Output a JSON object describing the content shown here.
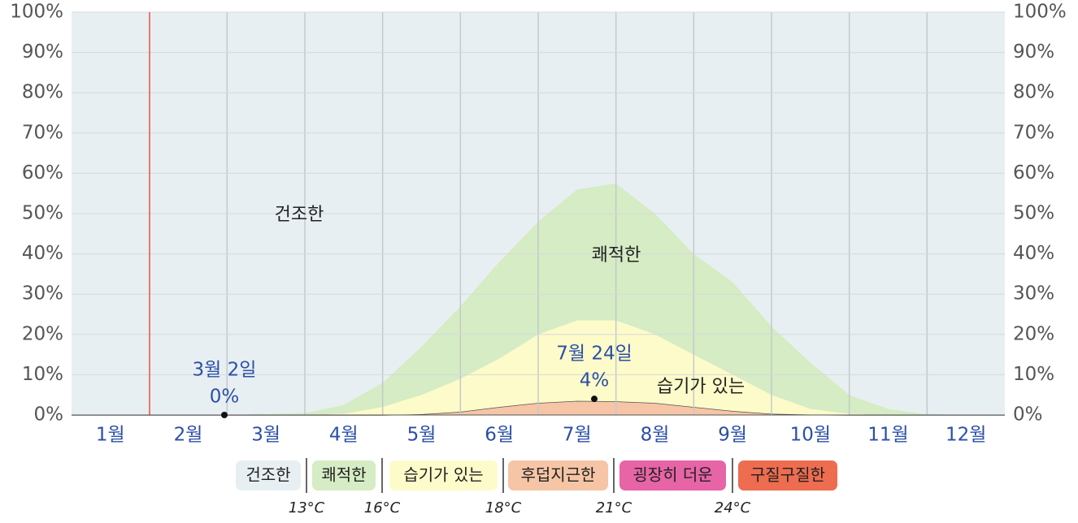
{
  "chart_data": {
    "type": "stacked-area",
    "categories": [
      null,
      "1월",
      null,
      "2월",
      null,
      "3월",
      null,
      "4월",
      null,
      "5월",
      null,
      "6월",
      null,
      "7월",
      null,
      "8월",
      null,
      "9월",
      null,
      "10월",
      null,
      "11월",
      null,
      "12월",
      null
    ],
    "series": [
      {
        "name": "후덥지근한",
        "color": "#f6c5a6",
        "values": [
          0,
          0,
          0,
          0,
          0,
          0,
          0,
          0,
          0,
          0.2,
          0.8,
          2,
          3,
          3.5,
          3.4,
          3,
          2,
          1,
          0.3,
          0.1,
          0,
          0,
          0,
          0,
          0
        ]
      },
      {
        "name": "습기가 있는",
        "color": "#fdfbc9",
        "values": [
          0,
          0,
          0,
          0,
          0,
          0,
          0,
          0.3,
          2,
          4.8,
          8.2,
          12,
          17,
          20,
          20.1,
          17,
          13,
          9,
          4.7,
          1.4,
          0.3,
          0,
          0,
          0,
          0
        ]
      },
      {
        "name": "쾌적한",
        "color": "#d5ecc4",
        "values": [
          0,
          0,
          0,
          0,
          0,
          0.2,
          0.5,
          2.2,
          6,
          12,
          18,
          24,
          28,
          32.5,
          34,
          30,
          25,
          23,
          17,
          11.5,
          4.7,
          1.5,
          0.2,
          0,
          0
        ]
      },
      {
        "name": "건조한",
        "color": "#e8eff2",
        "values": [
          100,
          100,
          100,
          100,
          100,
          99.8,
          99.5,
          97.5,
          92,
          83,
          73,
          62,
          52,
          44,
          42.5,
          50,
          60,
          67,
          78,
          87,
          95,
          98.5,
          99.8,
          100,
          100
        ]
      }
    ],
    "ylim": [
      0,
      100
    ],
    "yticks": [
      {
        "value": 0,
        "label": "0%"
      },
      {
        "value": 10,
        "label": "10%"
      },
      {
        "value": 20,
        "label": "20%"
      },
      {
        "value": 30,
        "label": "30%"
      },
      {
        "value": 40,
        "label": "40%"
      },
      {
        "value": 50,
        "label": "50%"
      },
      {
        "value": 60,
        "label": "60%"
      },
      {
        "value": 70,
        "label": "70%"
      },
      {
        "value": 80,
        "label": "80%"
      },
      {
        "value": 90,
        "label": "90%"
      },
      {
        "value": 100,
        "label": "100%"
      }
    ],
    "grid": true,
    "annotations": [
      {
        "date": "3월 2일",
        "value": 0,
        "value_label": "0%"
      },
      {
        "date": "7월 24일",
        "value": 4,
        "value_label": "4%"
      }
    ],
    "legend_extra": [
      {
        "name": "굉장히 더운",
        "color": "#e764a6"
      },
      {
        "name": "구질구질한",
        "color": "#ee6c50"
      }
    ],
    "thresholds": [
      "13°C",
      "16°C",
      "18°C",
      "21°C",
      "24°C"
    ]
  }
}
